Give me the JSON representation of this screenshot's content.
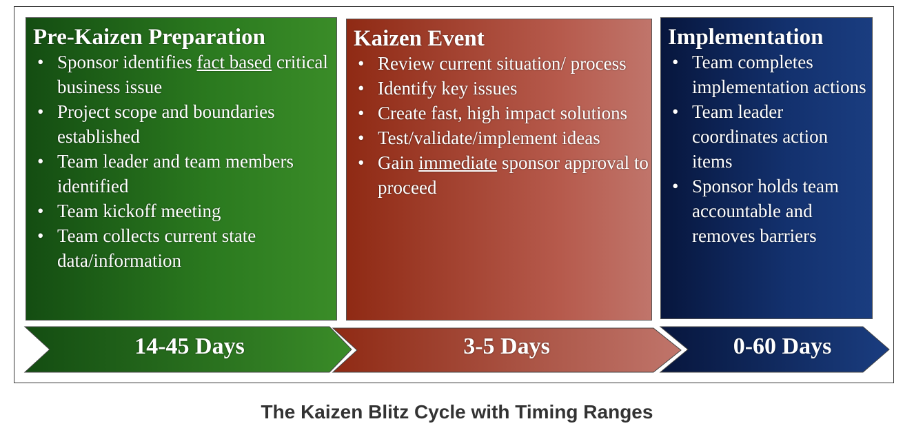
{
  "phases": [
    {
      "title": "Pre-Kaizen Preparation",
      "duration": "14-45 Days",
      "color": "#2b7a1f",
      "bullets": [
        {
          "pre": "Sponsor identifies ",
          "u": "fact based",
          "post": " critical business issue"
        },
        {
          "pre": "Project scope and boundaries established",
          "u": "",
          "post": ""
        },
        {
          "pre": "Team leader and team members identified",
          "u": "",
          "post": ""
        },
        {
          "pre": "Team kickoff meeting",
          "u": "",
          "post": ""
        },
        {
          "pre": "Team collects current state data/information",
          "u": "",
          "post": ""
        }
      ]
    },
    {
      "title": "Kaizen Event",
      "duration": "3-5 Days",
      "color": "#b65a4c",
      "bullets": [
        {
          "pre": "Review current situation/ process",
          "u": "",
          "post": ""
        },
        {
          "pre": "Identify key issues",
          "u": "",
          "post": ""
        },
        {
          "pre": "Create fast, high impact solutions",
          "u": "",
          "post": ""
        },
        {
          "pre": "Test/validate/implement ideas",
          "u": "",
          "post": ""
        },
        {
          "pre": "Gain ",
          "u": "immediate",
          "post": " sponsor approval to proceed"
        }
      ]
    },
    {
      "title": "Implementation",
      "duration": "0-60 Days",
      "color": "#13316e",
      "bullets": [
        {
          "pre": "Team completes implementation actions",
          "u": "",
          "post": ""
        },
        {
          "pre": "Team leader coordinates action items",
          "u": "",
          "post": ""
        },
        {
          "pre": "Sponsor holds team accountable and removes barriers",
          "u": "",
          "post": ""
        }
      ]
    }
  ],
  "caption": "The Kaizen Blitz Cycle with Timing Ranges"
}
